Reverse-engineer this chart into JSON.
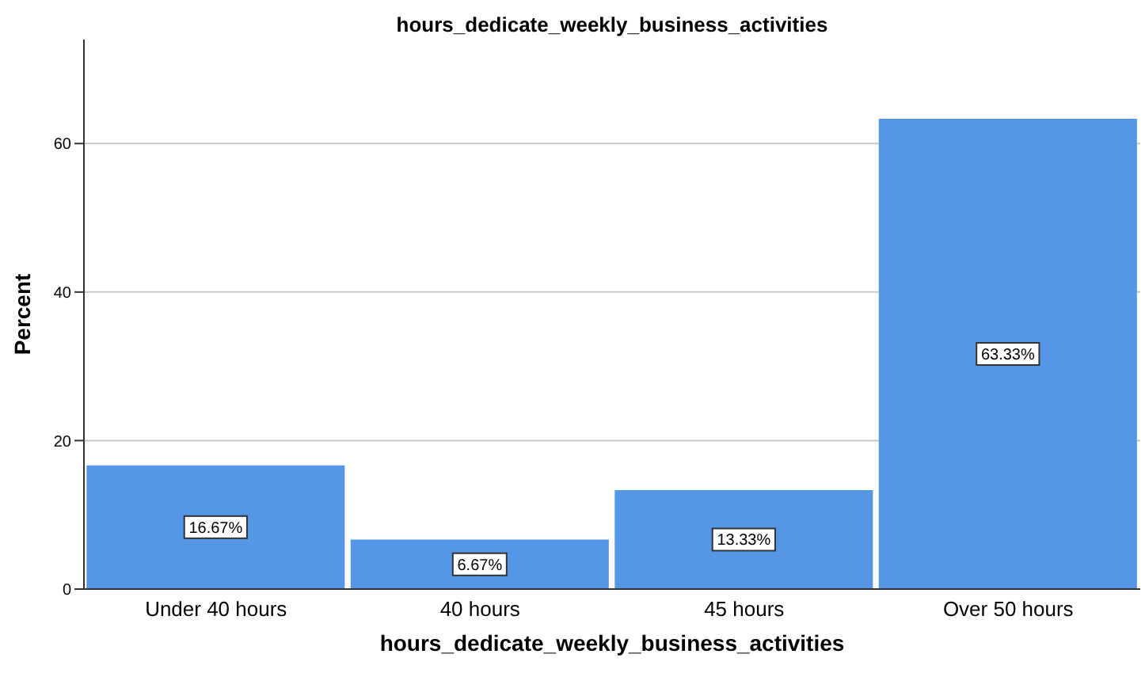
{
  "chart_data": {
    "type": "bar",
    "title": "hours_dedicate_weekly_business_activities",
    "xlabel": "hours_dedicate_weekly_business_activities",
    "ylabel": "Percent",
    "categories": [
      "Under 40 hours",
      "40 hours",
      "45 hours",
      "Over 50 hours"
    ],
    "values": [
      16.67,
      6.67,
      13.33,
      63.33
    ],
    "value_labels": [
      "16.67%",
      "6.67%",
      "13.33%",
      "63.33%"
    ],
    "color": "#5596e6",
    "ylim": [
      0,
      74
    ],
    "yticks": [
      0,
      20,
      40,
      60
    ],
    "grid": "y"
  }
}
